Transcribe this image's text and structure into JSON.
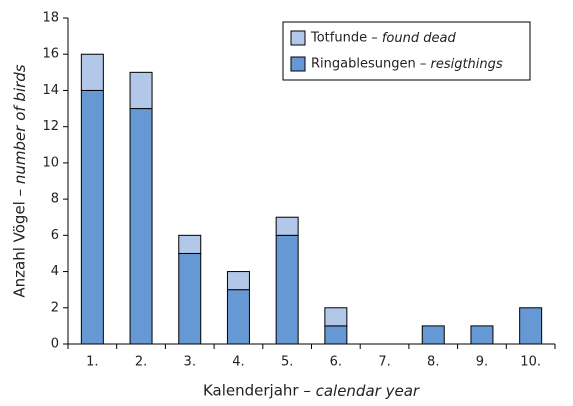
{
  "chart_data": {
    "type": "stacked-bar",
    "x_label": "Kalenderjahr – calendar year",
    "y_label": "Anzahl Vögel – number of birds",
    "categories": [
      "1.",
      "2.",
      "3.",
      "4.",
      "5.",
      "6.",
      "7.",
      "8.",
      "9.",
      "10."
    ],
    "series": [
      {
        "name": "Ringablesungen – resigthings",
        "color": "#6699d4",
        "values": [
          14,
          13,
          5,
          3,
          6,
          1,
          0,
          1,
          1,
          2
        ]
      },
      {
        "name": "Totfunde – found dead",
        "color": "#b3c8e8",
        "values": [
          2,
          2,
          1,
          1,
          1,
          1,
          0,
          0,
          0,
          0
        ]
      }
    ],
    "ylim": [
      0,
      18
    ],
    "yticks": [
      0,
      2,
      4,
      6,
      8,
      10,
      12,
      14,
      16,
      18
    ],
    "legend": "top-right",
    "grid": false
  }
}
